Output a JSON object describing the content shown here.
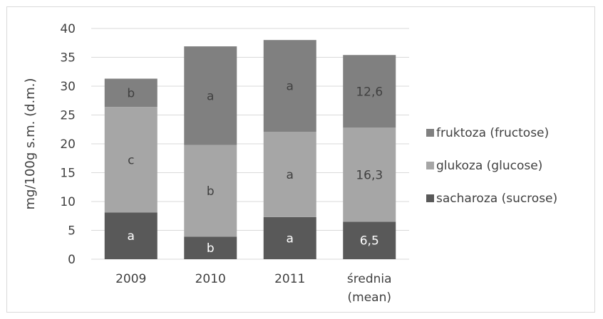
{
  "chart_data": {
    "type": "bar",
    "stacked": true,
    "categories": [
      [
        "2009"
      ],
      [
        "2010"
      ],
      [
        "2011"
      ],
      [
        "średnia",
        "(mean)"
      ]
    ],
    "ylabel": "mg/100g s.m. (d.m.)",
    "ylim": [
      0,
      40
    ],
    "yticks": [
      0,
      5,
      10,
      15,
      20,
      25,
      30,
      35,
      40
    ],
    "grid": true,
    "legend_position": "right",
    "series": [
      {
        "name": "sacharoza (sucrose)",
        "color": "#595959",
        "label_color": "#ffffff",
        "values": [
          8.1,
          3.9,
          7.3,
          6.5
        ],
        "labels": [
          "a",
          "b",
          "a",
          "6,5"
        ]
      },
      {
        "name": "glukoza (glucose)",
        "color": "#a6a6a6",
        "label_color": "#404040",
        "values": [
          18.3,
          15.9,
          14.8,
          16.3
        ],
        "labels": [
          "c",
          "b",
          "a",
          "16,3"
        ]
      },
      {
        "name": "fruktoza (fructose)",
        "color": "#808080",
        "label_color": "#404040",
        "values": [
          4.9,
          17.1,
          15.9,
          12.6
        ],
        "labels": [
          "b",
          "a",
          "a",
          "12,6"
        ]
      }
    ]
  }
}
